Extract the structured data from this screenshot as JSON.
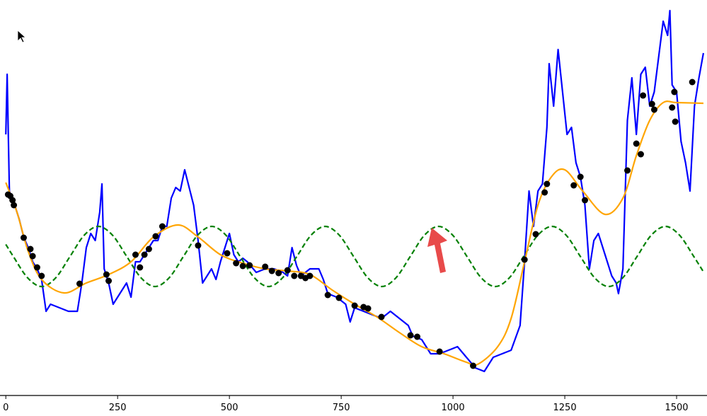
{
  "chart_data": {
    "type": "line",
    "xlim": [
      -13,
      1568
    ],
    "ylim": [
      0,
      559
    ],
    "xticks": [
      0,
      250,
      500,
      750,
      1000,
      1250,
      1500
    ],
    "series": [
      {
        "type": "line",
        "color": "#0000ff",
        "x": [
          0,
          3,
          8,
          20,
          30,
          40,
          50,
          60,
          70,
          80,
          90,
          100,
          120,
          140,
          160,
          170,
          180,
          190,
          200,
          210,
          215,
          220,
          230,
          240,
          250,
          260,
          270,
          280,
          290,
          300,
          310,
          320,
          330,
          340,
          350,
          360,
          370,
          380,
          390,
          400,
          410,
          420,
          430,
          440,
          450,
          460,
          470,
          480,
          490,
          500,
          510,
          520,
          530,
          540,
          560,
          580,
          600,
          620,
          630,
          640,
          650,
          660,
          680,
          700,
          710,
          720,
          740,
          760,
          770,
          780,
          800,
          820,
          840,
          860,
          880,
          900,
          910,
          930,
          950,
          970,
          990,
          1010,
          1030,
          1050,
          1070,
          1090,
          1110,
          1130,
          1150,
          1160,
          1170,
          1180,
          1190,
          1200,
          1210,
          1215,
          1225,
          1235,
          1245,
          1255,
          1265,
          1275,
          1285,
          1295,
          1305,
          1315,
          1325,
          1335,
          1345,
          1355,
          1365,
          1370,
          1380,
          1390,
          1400,
          1410,
          1420,
          1430,
          1440,
          1450,
          1460,
          1470,
          1480,
          1485,
          1490,
          1500,
          1510,
          1520,
          1530,
          1540,
          1550,
          1560
        ],
        "values": [
          369,
          454,
          289,
          269,
          249,
          224,
          209,
          189,
          179,
          164,
          119,
          129,
          124,
          119,
          119,
          159,
          209,
          229,
          219,
          259,
          299,
          179,
          159,
          129,
          139,
          149,
          159,
          139,
          189,
          189,
          199,
          209,
          219,
          219,
          239,
          239,
          279,
          294,
          289,
          319,
          294,
          269,
          219,
          159,
          169,
          179,
          164,
          189,
          209,
          229,
          199,
          189,
          194,
          189,
          174,
          179,
          179,
          174,
          169,
          209,
          184,
          169,
          179,
          179,
          164,
          144,
          139,
          129,
          104,
          124,
          119,
          114,
          109,
          119,
          109,
          99,
          84,
          79,
          59,
          59,
          64,
          69,
          54,
          39,
          34,
          54,
          59,
          64,
          99,
          189,
          289,
          239,
          289,
          299,
          379,
          469,
          409,
          489,
          429,
          369,
          379,
          329,
          309,
          269,
          179,
          219,
          229,
          209,
          189,
          169,
          159,
          144,
          179,
          389,
          449,
          369,
          454,
          464,
          409,
          429,
          479,
          529,
          509,
          544,
          439,
          429,
          359,
          329,
          289,
          409,
          449,
          484
        ]
      },
      {
        "type": "line",
        "color": "#008000",
        "dashed": true,
        "smooth": true,
        "x": [
          0,
          16.8,
          48.5,
          80.2,
          111.9,
          143.6,
          175.3,
          207,
          238.7,
          270.4,
          302.1,
          333.8,
          365.5,
          397.2,
          428.9,
          460.6,
          492.3,
          524,
          555.7,
          587.4,
          619.1,
          650.8,
          682.5,
          714.2,
          745.9,
          777.6,
          809.3,
          841,
          872.7,
          904.4,
          936.1,
          967.8,
          999.5,
          1031.2,
          1062.9,
          1094.6,
          1126.3,
          1158,
          1189.7,
          1221.4,
          1253.1,
          1284.8,
          1316.5,
          1348.2,
          1379.9,
          1411.6,
          1443.3,
          1475,
          1506.7,
          1538.4,
          1560
        ],
        "values": [
          213.6,
          196.5,
          166.5,
          154,
          166.5,
          196.5,
          226.5,
          239,
          226.5,
          196.5,
          166.5,
          154,
          166.5,
          196.5,
          226.5,
          239,
          226.5,
          196.5,
          166.5,
          154,
          166.5,
          196.5,
          226.5,
          239,
          226.5,
          196.5,
          166.5,
          154,
          166.5,
          196.5,
          226.5,
          239,
          226.5,
          196.5,
          166.5,
          154,
          166.5,
          196.5,
          226.5,
          239,
          226.5,
          196.5,
          166.5,
          154,
          166.5,
          196.5,
          226.5,
          239,
          226.5,
          196.5,
          174.8
        ]
      },
      {
        "type": "line",
        "color": "#ffa500",
        "smooth": true,
        "x": [
          0,
          25,
          50,
          80,
          130,
          180,
          230,
          280,
          330,
          385,
          430,
          480,
          530,
          580,
          630,
          680,
          730,
          780,
          830,
          880,
          930,
          980,
          1030,
          1055,
          1100,
          1130,
          1160,
          1190,
          1220,
          1250,
          1290,
          1340,
          1380,
          1410,
          1440,
          1470,
          1500,
          1560
        ],
        "values": [
          301,
          259,
          204,
          164,
          145,
          159,
          171,
          189,
          224,
          241,
          224,
          199,
          187,
          179,
          176,
          171,
          149,
          129,
          111,
          89,
          69,
          59,
          47,
          44,
          69,
          109,
          189,
          269,
          309,
          319,
          289,
          256,
          279,
          339,
          389,
          414,
          414,
          413
        ]
      },
      {
        "type": "scatter",
        "color": "#000000",
        "x": [
          5,
          10,
          15,
          18,
          40,
          55,
          60,
          70,
          80,
          165,
          225,
          230,
          290,
          300,
          310,
          320,
          335,
          350,
          430,
          495,
          515,
          530,
          545,
          580,
          595,
          610,
          630,
          645,
          660,
          670,
          680,
          720,
          745,
          780,
          800,
          810,
          840,
          905,
          920,
          970,
          1045,
          1160,
          1185,
          1205,
          1210,
          1270,
          1285,
          1295,
          1390,
          1410,
          1420,
          1425,
          1445,
          1450,
          1490,
          1495,
          1497,
          1535
        ],
        "values": [
          284,
          282,
          276,
          269,
          223,
          207,
          197,
          181,
          169,
          158,
          171,
          162,
          199,
          181,
          199,
          207,
          225,
          239,
          212,
          201,
          187,
          183,
          184,
          182,
          176,
          173,
          177,
          169,
          169,
          166,
          169,
          142,
          138,
          127,
          125,
          123,
          111,
          85,
          83,
          62,
          42,
          192,
          228,
          287,
          299,
          297,
          309,
          276,
          318,
          356,
          341,
          424,
          412,
          404,
          407,
          429,
          387,
          443
        ]
      }
    ]
  }
}
